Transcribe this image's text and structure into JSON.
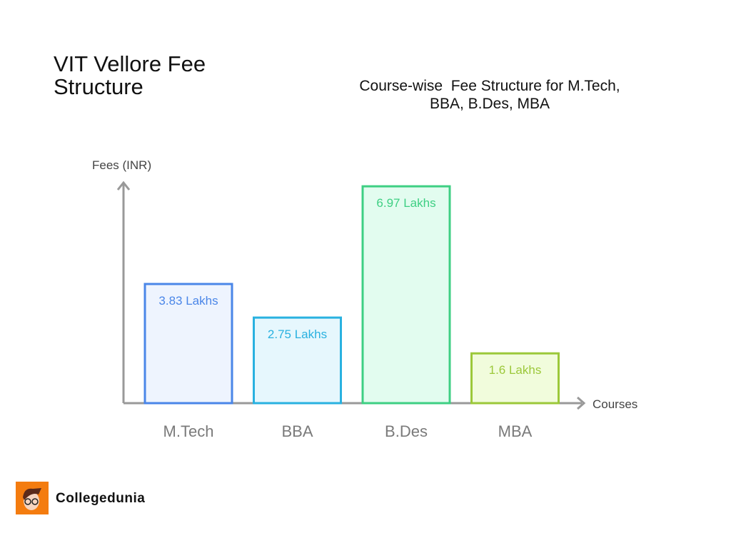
{
  "title": "VIT Vellore Fee Structure",
  "subtitle": "Course-wise  Fee Structure for M.Tech, BBA, B.Des, MBA",
  "brand": "Collegedunia",
  "chart_data": {
    "type": "bar",
    "title": "Course-wise  Fee Structure for M.Tech, BBA, B.Des, MBA",
    "xlabel": "Courses",
    "ylabel": "Fees (INR)",
    "categories": [
      "M.Tech",
      "BBA",
      "B.Des",
      "MBA"
    ],
    "values": [
      3.83,
      2.75,
      6.97,
      1.6
    ],
    "data_labels": [
      "3.83 Lakhs",
      "2.75 Lakhs",
      "6.97 Lakhs",
      "1.6 Lakhs"
    ],
    "unit": "Lakhs",
    "grid": false,
    "colors": [
      {
        "stroke": "#4a86e8",
        "fill": "#eef4fe"
      },
      {
        "stroke": "#29b1e0",
        "fill": "#e6f7fd"
      },
      {
        "stroke": "#3ecf83",
        "fill": "#e2fcef"
      },
      {
        "stroke": "#9cc83a",
        "fill": "#f1fcdc"
      }
    ],
    "axis_color": "#999999",
    "tick_label_color": "#7a7a7a"
  }
}
